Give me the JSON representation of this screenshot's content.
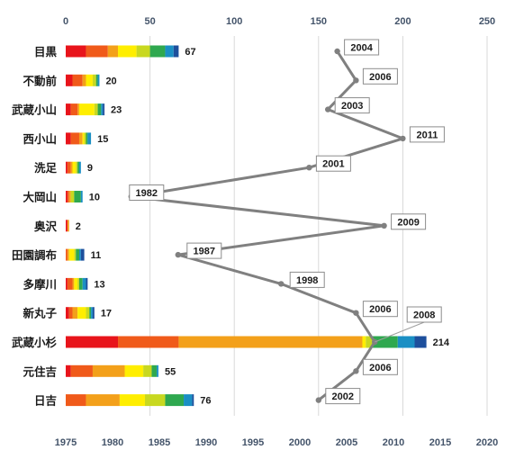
{
  "chart_data": {
    "type": "bar",
    "stacked": true,
    "orientation": "horizontal",
    "categories": [
      "目黒",
      "不動前",
      "武蔵小山",
      "西小山",
      "洗足",
      "大岡山",
      "奥沢",
      "田園調布",
      "多摩川",
      "新丸子",
      "武蔵小杉",
      "元住吉",
      "日吉"
    ],
    "top_axis": {
      "ticks": [
        "0",
        "50",
        "100",
        "150",
        "200",
        "250"
      ],
      "range": [
        0,
        250
      ]
    },
    "bottom_axis": {
      "ticks": [
        "1975",
        "1980",
        "1985",
        "1990",
        "1995",
        "2000",
        "2005",
        "2010",
        "2015",
        "2020"
      ],
      "range": [
        1975,
        2020
      ]
    },
    "grid": "vertical",
    "segment_colors": [
      "#e8141b",
      "#f05a1a",
      "#f3a01a",
      "#ffee00",
      "#c8d820",
      "#2fa84f",
      "#1a8fc4",
      "#1d4f9c"
    ],
    "segments": [
      [
        12,
        13,
        6,
        11,
        8,
        9,
        5,
        3
      ],
      [
        4,
        6,
        2,
        4,
        2,
        1,
        1,
        0
      ],
      [
        3,
        4,
        1,
        9,
        2,
        2,
        1,
        1
      ],
      [
        3,
        5,
        2,
        1,
        1,
        1,
        2,
        0
      ],
      [
        1,
        2,
        1,
        2,
        1,
        1,
        1,
        0
      ],
      [
        1,
        1,
        1,
        0,
        2,
        4,
        1,
        0
      ],
      [
        1,
        0,
        1,
        0,
        0,
        0,
        0,
        0
      ],
      [
        0,
        1,
        1,
        3,
        1,
        2,
        1,
        2
      ],
      [
        1,
        3,
        1,
        2,
        1,
        2,
        2,
        1
      ],
      [
        2,
        2,
        3,
        5,
        2,
        1,
        1,
        1
      ],
      [
        31,
        36,
        109,
        2,
        4,
        15,
        10,
        7
      ],
      [
        3,
        13,
        19,
        11,
        5,
        3,
        1,
        0
      ],
      [
        0,
        12,
        20,
        15,
        12,
        11,
        5,
        1
      ]
    ],
    "totals": [
      "67",
      "20",
      "23",
      "15",
      "9",
      "10",
      "2",
      "11",
      "13",
      "17",
      "214",
      "55",
      "76"
    ],
    "line_series": {
      "values": [
        2004,
        2006,
        2003,
        2011,
        2001,
        1982,
        2009,
        1987,
        1998,
        2006,
        2008,
        2006,
        2002
      ],
      "labels": [
        "2004",
        "2006",
        "2003",
        "2011",
        "2001",
        "1982",
        "2009",
        "1987",
        "1998",
        "2006",
        "2008",
        "2006",
        "2002"
      ],
      "color": "#808080"
    },
    "bar_xlim": [
      0,
      250
    ],
    "line_xlim": [
      1975,
      2020
    ]
  }
}
